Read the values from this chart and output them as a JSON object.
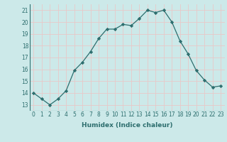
{
  "x": [
    0,
    1,
    2,
    3,
    4,
    5,
    6,
    7,
    8,
    9,
    10,
    11,
    12,
    13,
    14,
    15,
    16,
    17,
    18,
    19,
    20,
    21,
    22,
    23
  ],
  "y": [
    14.0,
    13.5,
    13.0,
    13.5,
    14.2,
    15.9,
    16.6,
    17.5,
    18.6,
    19.4,
    19.4,
    19.8,
    19.7,
    20.3,
    21.0,
    20.8,
    21.0,
    20.0,
    18.4,
    17.3,
    15.9,
    15.1,
    14.5,
    14.6
  ],
  "line_color": "#2d6e6e",
  "marker": "D",
  "marker_size": 2.2,
  "bg_color": "#cce9e9",
  "grid_color": "#e8c8c8",
  "xlabel": "Humidex (Indice chaleur)",
  "ylim": [
    12.5,
    21.5
  ],
  "xlim": [
    -0.5,
    23.5
  ],
  "yticks": [
    13,
    14,
    15,
    16,
    17,
    18,
    19,
    20,
    21
  ],
  "xticks": [
    0,
    1,
    2,
    3,
    4,
    5,
    6,
    7,
    8,
    9,
    10,
    11,
    12,
    13,
    14,
    15,
    16,
    17,
    18,
    19,
    20,
    21,
    22,
    23
  ],
  "label_fontsize": 6.5,
  "tick_fontsize": 5.5,
  "linewidth": 0.9
}
